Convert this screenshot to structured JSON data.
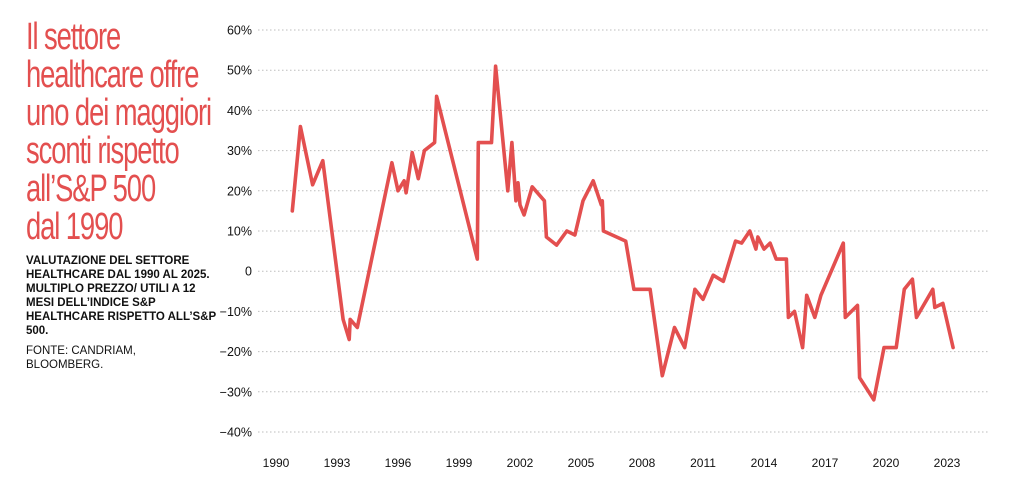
{
  "header": {
    "title_lines": [
      "Il settore",
      "healthcare offre",
      "uno dei maggiori",
      "sconti rispetto",
      "all’S&P 500",
      "dal 1990"
    ],
    "subtitle": "VALUTAZIONE DEL SETTORE HEALTHCARE DAL 1990 AL 2025. MULTIPLO PREZZO/ UTILI A 12 MESI DELL’INDICE S&P HEALTHCARE RISPETTO ALL’S&P 500.",
    "source": "FONTE: CANDRIAM, BLOOMBERG."
  },
  "colors": {
    "line": "#e34f4f",
    "title": "#e34f4f",
    "grid": "#bdbdbd",
    "text": "#111111"
  },
  "chart_data": {
    "type": "line",
    "title": "Il settore healthcare offre uno dei maggiori sconti rispetto all’S&P 500 dal 1990",
    "xlabel": "",
    "ylabel": "",
    "xlim": [
      1990,
      2024.5
    ],
    "ylim": [
      -40,
      60
    ],
    "grid": "horizontal-dotted",
    "y_ticks": [
      60,
      50,
      40,
      30,
      20,
      10,
      0,
      -10,
      -20,
      -30,
      -40
    ],
    "y_tick_labels": [
      "60%",
      "50%",
      "40%",
      "30%",
      "20%",
      "10%",
      "0",
      "−10%",
      "−20%",
      "−30%",
      "−40%"
    ],
    "x_ticks": [
      1990,
      1993,
      1996,
      1999,
      2002,
      2005,
      2008,
      2011,
      2014,
      2017,
      2020,
      2023
    ],
    "x_tick_labels": [
      "1990",
      "1993",
      "1996",
      "1999",
      "2002",
      "2005",
      "2008",
      "2011",
      "2014",
      "2017",
      "2020",
      "2023"
    ],
    "series": [
      {
        "points": [
          [
            1990.8,
            15
          ],
          [
            1991.2,
            36
          ],
          [
            1991.8,
            21.5
          ],
          [
            1992.3,
            27.5
          ],
          [
            1993.3,
            -12
          ],
          [
            1993.6,
            -17
          ],
          [
            1993.65,
            -12
          ],
          [
            1994.0,
            -14
          ],
          [
            1995.7,
            27
          ],
          [
            1996.0,
            20
          ],
          [
            1996.3,
            22.5
          ],
          [
            1996.4,
            19.5
          ],
          [
            1996.7,
            29.5
          ],
          [
            1997.0,
            23
          ],
          [
            1997.3,
            30
          ],
          [
            1997.8,
            32
          ],
          [
            1997.9,
            43.5
          ],
          [
            1999.9,
            3
          ],
          [
            1999.95,
            32
          ],
          [
            2000.6,
            32
          ],
          [
            2000.8,
            51
          ],
          [
            2001.4,
            20
          ],
          [
            2001.6,
            32
          ],
          [
            2001.8,
            17.5
          ],
          [
            2001.9,
            22
          ],
          [
            2002.0,
            16.5
          ],
          [
            2002.2,
            14
          ],
          [
            2002.6,
            21
          ],
          [
            2003.2,
            17.5
          ],
          [
            2003.3,
            8.5
          ],
          [
            2003.8,
            6.5
          ],
          [
            2004.3,
            10
          ],
          [
            2004.7,
            9
          ],
          [
            2005.1,
            17.5
          ],
          [
            2005.6,
            22.5
          ],
          [
            2006.0,
            16.5
          ],
          [
            2006.05,
            17.5
          ],
          [
            2006.1,
            10
          ],
          [
            2007.2,
            7.5
          ],
          [
            2007.6,
            -4.5
          ],
          [
            2008.4,
            -4.5
          ],
          [
            2009.0,
            -26
          ],
          [
            2009.6,
            -14
          ],
          [
            2010.1,
            -19
          ],
          [
            2010.6,
            -4.5
          ],
          [
            2011.0,
            -7
          ],
          [
            2011.5,
            -1
          ],
          [
            2012.0,
            -2.5
          ],
          [
            2012.6,
            7.5
          ],
          [
            2012.9,
            7
          ],
          [
            2013.3,
            10
          ],
          [
            2013.6,
            5.5
          ],
          [
            2013.7,
            8.5
          ],
          [
            2014.0,
            5.5
          ],
          [
            2014.3,
            7
          ],
          [
            2014.6,
            3
          ],
          [
            2015.1,
            3
          ],
          [
            2015.2,
            -11.5
          ],
          [
            2015.5,
            -10
          ],
          [
            2015.9,
            -19
          ],
          [
            2016.1,
            -6
          ],
          [
            2016.5,
            -11.5
          ],
          [
            2016.8,
            -6
          ],
          [
            2017.9,
            7
          ],
          [
            2018.0,
            -11.5
          ],
          [
            2018.6,
            -8.5
          ],
          [
            2018.7,
            -26.5
          ],
          [
            2019.4,
            -32
          ],
          [
            2019.9,
            -19
          ],
          [
            2020.5,
            -19
          ],
          [
            2020.9,
            -4.5
          ],
          [
            2021.3,
            -2
          ],
          [
            2021.5,
            -11.5
          ],
          [
            2022.3,
            -4.5
          ],
          [
            2022.4,
            -9
          ],
          [
            2022.8,
            -8
          ],
          [
            2023.3,
            -19
          ]
        ]
      }
    ]
  }
}
